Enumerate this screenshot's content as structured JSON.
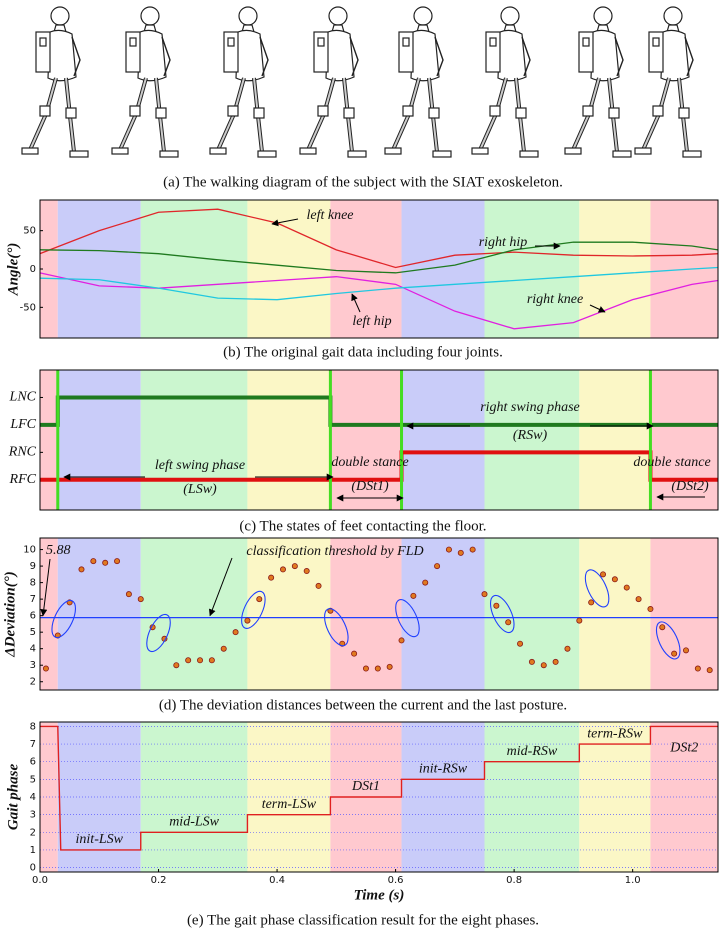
{
  "figure_a": {
    "caption": "(a)  The walking diagram of the subject with the SIAT exoskeleton."
  },
  "phases": {
    "bounds": [
      0.03,
      0.17,
      0.35,
      0.49,
      0.61,
      0.75,
      0.91,
      1.03
    ],
    "colors": [
      "#ffc9cf",
      "#c9ccf9",
      "#cbf6cf",
      "#fbf7c6",
      "#ffc9cf",
      "#c9ccf9",
      "#cbf6cf",
      "#fbf7c6",
      "#ffc9cf"
    ]
  },
  "chart_data": [
    {
      "type": "line",
      "caption": "(b)  The original gait data including four joints.",
      "ylabel": "Angle(°)",
      "xlim": [
        0,
        1.144
      ],
      "ylim": [
        -90,
        90
      ],
      "yticks": [
        -50,
        0,
        50
      ],
      "x": [
        0,
        0.1,
        0.2,
        0.3,
        0.4,
        0.5,
        0.6,
        0.7,
        0.8,
        0.9,
        1.0,
        1.1,
        1.144
      ],
      "series": [
        {
          "name": "left knee",
          "color": "#e0262a",
          "values": [
            20,
            50,
            74,
            78,
            60,
            25,
            2,
            18,
            22,
            18,
            17,
            18,
            20
          ]
        },
        {
          "name": "right hip",
          "color": "#1f7a1f",
          "values": [
            25,
            24,
            20,
            12,
            5,
            -2,
            -5,
            5,
            25,
            35,
            35,
            30,
            25
          ]
        },
        {
          "name": "right knee",
          "color": "#e020e0",
          "values": [
            -5,
            -22,
            -25,
            -20,
            -15,
            -10,
            -20,
            -55,
            -78,
            -70,
            -40,
            -20,
            -15
          ]
        },
        {
          "name": "left hip",
          "color": "#20c8e0",
          "values": [
            -12,
            -14,
            -25,
            -38,
            -40,
            -32,
            -25,
            -20,
            -15,
            -10,
            -5,
            0,
            2
          ]
        }
      ]
    },
    {
      "type": "line",
      "caption": "(c)  The states of feet contacting the floor.",
      "xlim": [
        0,
        1.144
      ],
      "ylim": [
        -0.1,
        5.0
      ],
      "yticks": [
        {
          "value": 4,
          "label": "LNC"
        },
        {
          "value": 3,
          "label": "LFC"
        },
        {
          "value": 2,
          "label": "RNC"
        },
        {
          "value": 1,
          "label": "RFC"
        }
      ],
      "series": [
        {
          "color": "#1f7a1f",
          "x": [
            0,
            0.03,
            0.03,
            0.49,
            0.49,
            1.144
          ],
          "values": [
            3,
            3,
            4,
            4,
            3,
            3
          ]
        },
        {
          "color": "#e01010",
          "x": [
            0,
            0.61,
            0.61,
            1.03,
            1.03,
            1.144
          ],
          "values": [
            1,
            1,
            2,
            2,
            1,
            1
          ]
        }
      ],
      "vlines": [
        0.03,
        0.49,
        0.61,
        1.03
      ],
      "vline_color": "#44dd22",
      "annotations": [
        "left swing phase",
        "(LSw)",
        "double stance",
        "(DSt1)",
        "right swing phase",
        "(RSw)",
        "double stance",
        "(DSt2)"
      ]
    },
    {
      "type": "scatter",
      "caption": "(d)  The deviation distances between the current and the last posture.",
      "ylabel": "ΔDeviation(°)",
      "xlim": [
        0,
        1.144
      ],
      "ylim": [
        1.5,
        10.7
      ],
      "yticks": [
        2,
        3,
        4,
        5,
        6,
        7,
        8,
        9,
        10
      ],
      "threshold": 5.88,
      "threshold_color": "#2040ff",
      "annotation": "classification threshold by FLD",
      "edgecolor": "#8b1a1a",
      "series": [
        {
          "color": "#e07a20",
          "x": [
            0.01,
            0.03,
            0.05,
            0.07,
            0.09,
            0.11,
            0.13,
            0.15,
            0.17,
            0.19,
            0.21,
            0.23,
            0.25,
            0.27,
            0.29,
            0.31,
            0.33,
            0.35,
            0.37,
            0.39,
            0.41,
            0.43,
            0.45,
            0.47,
            0.49,
            0.51,
            0.53,
            0.55,
            0.57,
            0.59,
            0.61,
            0.63,
            0.65,
            0.67,
            0.69,
            0.71,
            0.73,
            0.75,
            0.77,
            0.79,
            0.81,
            0.83,
            0.85,
            0.87,
            0.89,
            0.91,
            0.93,
            0.95,
            0.97,
            0.99,
            1.01,
            1.03,
            1.05,
            1.07,
            1.09,
            1.11,
            1.13
          ],
          "values": [
            2.8,
            4.8,
            6.8,
            8.8,
            9.3,
            9.2,
            9.3,
            7.3,
            7.0,
            5.3,
            4.6,
            3.0,
            3.3,
            3.3,
            3.3,
            4.0,
            5.0,
            5.7,
            7.0,
            8.3,
            8.8,
            9.0,
            8.7,
            7.8,
            6.3,
            4.3,
            3.7,
            2.8,
            2.8,
            2.9,
            4.5,
            7.2,
            8.0,
            9.0,
            10.0,
            9.8,
            10.0,
            7.3,
            6.6,
            5.6,
            4.3,
            3.2,
            3.0,
            3.2,
            4.0,
            5.7,
            6.8,
            8.5,
            8.2,
            7.7,
            7.0,
            6.4,
            5.3,
            3.7,
            3.9,
            2.8,
            2.7
          ]
        }
      ]
    },
    {
      "type": "line",
      "caption": "(e)  The gait phase classification result for the eight phases.",
      "xlabel": "Time (s)",
      "ylabel": "Gait phase",
      "xlim": [
        0,
        1.144
      ],
      "ylim": [
        -0.25,
        8.25
      ],
      "xticks": [
        {
          "value": 0,
          "label": "0.0"
        },
        0.2,
        0.4,
        0.6,
        0.8,
        {
          "value": 1,
          "label": "1.0"
        }
      ],
      "yticks": [
        0,
        1,
        2,
        3,
        4,
        5,
        6,
        7,
        8
      ],
      "grid": true,
      "x": [
        0,
        0.03,
        0.035,
        0.17,
        0.17,
        0.35,
        0.35,
        0.49,
        0.49,
        0.61,
        0.61,
        0.75,
        0.75,
        0.91,
        0.91,
        1.03,
        1.03,
        1.144
      ],
      "series": [
        {
          "color": "#e02020",
          "values": [
            8,
            8,
            1,
            1,
            2,
            2,
            3,
            3,
            4,
            4,
            5,
            5,
            6,
            6,
            7,
            7,
            8,
            8
          ]
        }
      ],
      "phase_labels": [
        "init-LSw",
        "mid-LSw",
        "term-LSw",
        "DSt1",
        "init-RSw",
        "mid-RSw",
        "term-RSw",
        "DSt2"
      ]
    }
  ]
}
